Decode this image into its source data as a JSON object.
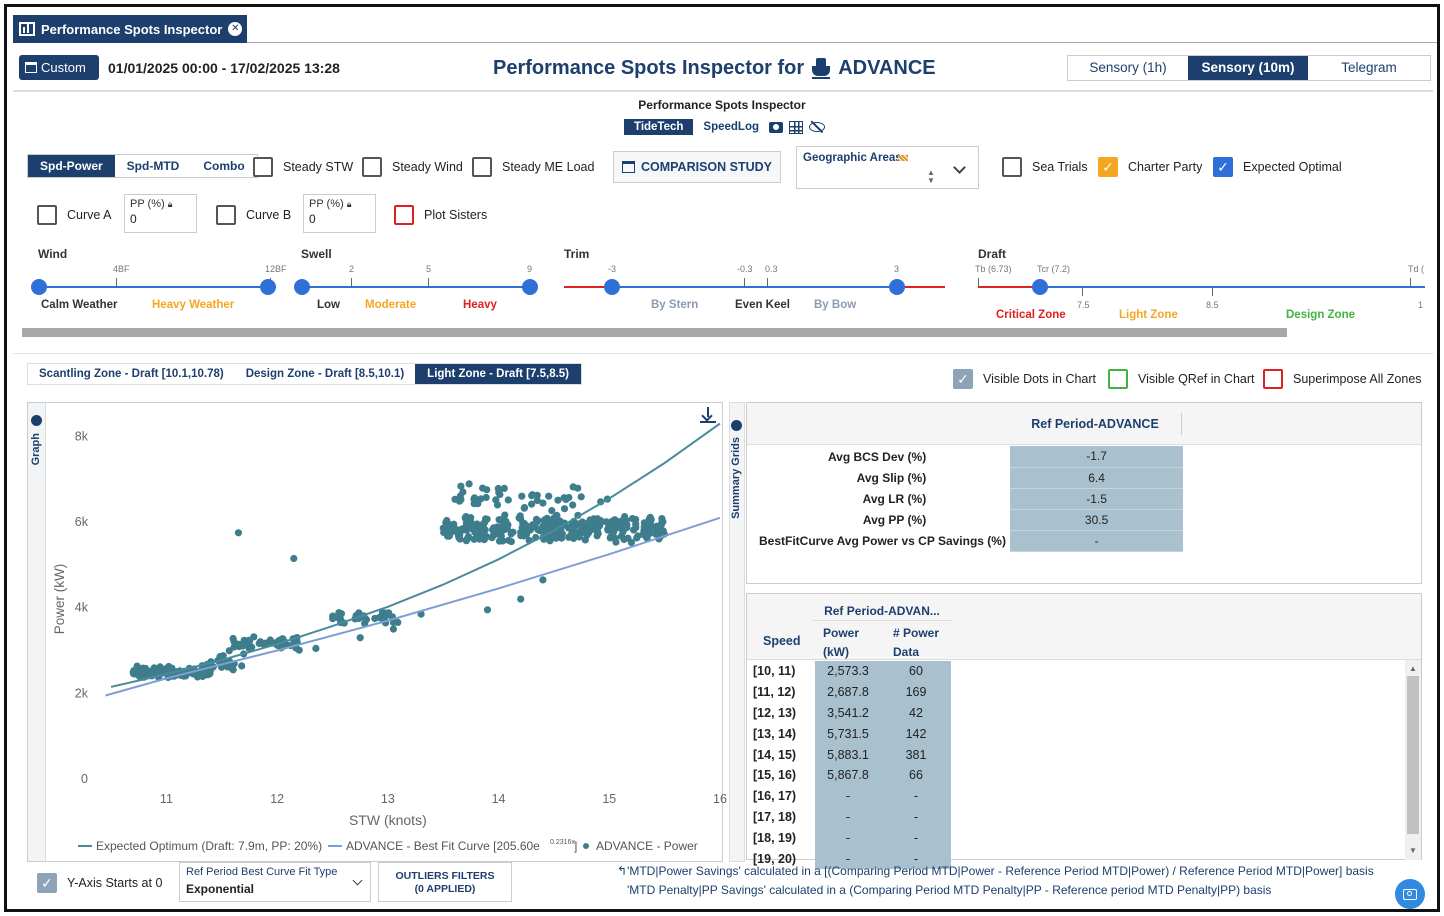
{
  "app_tab": {
    "title": "Performance Spots Inspector"
  },
  "header": {
    "custom_label": "Custom",
    "date_range": "01/01/2025 00:00 - 17/02/2025 13:28",
    "title_prefix": "Performance Spots Inspector for",
    "vessel": "ADVANCE",
    "source_tabs": [
      {
        "label": "Sensory (1h)",
        "active": false
      },
      {
        "label": "Sensory (10m)",
        "active": true
      },
      {
        "label": "Telegram",
        "active": false
      }
    ]
  },
  "subheader": {
    "title": "Performance Spots Inspector",
    "tabs": [
      {
        "label": "TideTech",
        "active": true
      },
      {
        "label": "SpeedLog",
        "active": false
      }
    ]
  },
  "modes": [
    {
      "label": "Spd-Power",
      "active": true
    },
    {
      "label": "Spd-MTD",
      "active": false
    },
    {
      "label": "Combo",
      "active": false
    }
  ],
  "filters": {
    "steady_stw": "Steady STW",
    "steady_wind": "Steady Wind",
    "steady_me": "Steady ME Load",
    "comparison": "COMPARISON STUDY",
    "geo": "Geographic Areas",
    "sea_trials": "Sea Trials",
    "charter_party": "Charter Party",
    "expected_optimal": "Expected Optimal"
  },
  "curves": {
    "curve_a": "Curve A",
    "curve_b": "Curve B",
    "pp_label": "PP (%)",
    "pp_a": "0",
    "pp_b": "0",
    "plot_sisters": "Plot Sisters"
  },
  "sliders": {
    "wind": {
      "title": "Wind",
      "t1": "4BF",
      "t2": "12BF",
      "z1": "Calm Weather",
      "z2": "Heavy Weather"
    },
    "swell": {
      "title": "Swell",
      "t1": "2",
      "t2": "5",
      "t3": "9",
      "z1": "Low",
      "z2": "Moderate",
      "z3": "Heavy"
    },
    "trim": {
      "title": "Trim",
      "t1": "-3",
      "t2": "-0.3",
      "t3": "0.3",
      "t4": "3",
      "z1": "By Stern",
      "z2": "Even Keel",
      "z3": "By Bow"
    },
    "draft": {
      "title": "Draft",
      "t1": "Tb (6.73)",
      "t2": "Tcr (7.2)",
      "t3": "7.5",
      "t4": "8.5",
      "t5": "Td (",
      "t6": "1",
      "z1": "Critical Zone",
      "z2": "Light Zone",
      "z3": "Design Zone"
    }
  },
  "zone_tabs": [
    {
      "label": "Scantling Zone - Draft [10.1,10.78)",
      "active": false
    },
    {
      "label": "Design Zone - Draft [8.5,10.1)",
      "active": false
    },
    {
      "label": "Light Zone - Draft [7.5,8.5)",
      "active": true
    }
  ],
  "visibility": {
    "dots": "Visible Dots in Chart",
    "qref": "Visible QRef in Chart",
    "superimpose": "Superimpose All Zones"
  },
  "graph": {
    "side_label": "Graph"
  },
  "chart_data": {
    "type": "scatter",
    "xlabel": "STW (knots)",
    "ylabel": "Power (kW)",
    "xlim": [
      10.4,
      16
    ],
    "ylim": [
      0,
      8500
    ],
    "xticks": [
      11,
      12,
      13,
      14,
      15,
      16
    ],
    "yticks": [
      0,
      2000,
      4000,
      6000,
      8000
    ],
    "ytick_labels": [
      "0",
      "2k",
      "4k",
      "6k",
      "8k"
    ],
    "legend": [
      "Expected Optimum (Draft: 7.9m, PP: 20%)",
      "ADVANCE - Best Fit Curve [205.60e",
      "0.2316x",
      "ADVANCE - Power"
    ],
    "series": [
      {
        "name": "Expected Optimum (Draft: 7.9m, PP: 20%)",
        "kind": "line",
        "color": "#4a8c9c",
        "x": [
          10.5,
          11,
          11.5,
          12,
          12.5,
          13,
          13.5,
          14,
          14.5,
          15,
          15.5,
          16
        ],
        "y": [
          2150,
          2450,
          2780,
          3150,
          3570,
          4020,
          4540,
          5130,
          5800,
          6550,
          7380,
          8300
        ]
      },
      {
        "name": "ADVANCE - Best Fit Curve",
        "kind": "line",
        "color": "#7e9ed6",
        "x": [
          10.45,
          11,
          12,
          13,
          14,
          15,
          16
        ],
        "y": [
          1950,
          2350,
          3000,
          3700,
          4450,
          5250,
          6100
        ]
      },
      {
        "name": "ADVANCE - Power",
        "kind": "scatter",
        "color": "#3d7d8c",
        "clusters": [
          {
            "x": [
              10.7,
              11.4
            ],
            "y": [
              2350,
              2650
            ],
            "n": 110
          },
          {
            "x": [
              11.3,
              11.7
            ],
            "y": [
              2400,
              3050
            ],
            "n": 25
          },
          {
            "x": [
              11.6,
              12.2
            ],
            "y": [
              3000,
              3350
            ],
            "n": 45
          },
          {
            "x": [
              12.5,
              13.1
            ],
            "y": [
              3600,
              3950
            ],
            "n": 30
          },
          {
            "x": [
              13.5,
              15.5
            ],
            "y": [
              5500,
              6200
            ],
            "n": 330
          },
          {
            "x": [
              13.6,
              15.0
            ],
            "y": [
              6250,
              6950
            ],
            "n": 45
          }
        ],
        "outliers": [
          [
            11.65,
            5750
          ],
          [
            12.15,
            5150
          ],
          [
            12.35,
            3050
          ],
          [
            12.75,
            3300
          ],
          [
            13.3,
            3850
          ],
          [
            13.9,
            3950
          ],
          [
            14.2,
            4200
          ],
          [
            14.4,
            4650
          ],
          [
            12.0,
            3200
          ],
          [
            13.05,
            3500
          ]
        ]
      }
    ]
  },
  "summary": {
    "side_label": "Summary Grids",
    "ref_header": "Ref Period-ADVANCE",
    "rows": [
      {
        "label": "Avg BCS Dev (%)",
        "value": "-1.7"
      },
      {
        "label": "Avg Slip (%)",
        "value": "6.4"
      },
      {
        "label": "Avg LR (%)",
        "value": "-1.5"
      },
      {
        "label": "Avg PP (%)",
        "value": "30.5"
      },
      {
        "label": "BestFitCurve Avg Power vs CP Savings (%)",
        "value": "-"
      }
    ],
    "speed_table": {
      "group_header": "Ref Period-ADVAN...",
      "col_speed": "Speed",
      "col_power": "Power (kW)",
      "col_count": "# Power Data",
      "rows": [
        {
          "speed": "[10, 11)",
          "power": "2,573.3",
          "count": "60"
        },
        {
          "speed": "[11, 12)",
          "power": "2,687.8",
          "count": "169"
        },
        {
          "speed": "[12, 13)",
          "power": "3,541.2",
          "count": "42"
        },
        {
          "speed": "[13, 14)",
          "power": "5,731.5",
          "count": "142"
        },
        {
          "speed": "[14, 15)",
          "power": "5,883.1",
          "count": "381"
        },
        {
          "speed": "[15, 16)",
          "power": "5,867.8",
          "count": "66"
        },
        {
          "speed": "[16, 17)",
          "power": "-",
          "count": "-"
        },
        {
          "speed": "[17, 18)",
          "power": "-",
          "count": "-"
        },
        {
          "speed": "[18, 19)",
          "power": "-",
          "count": "-"
        },
        {
          "speed": "[19, 20)",
          "power": "-",
          "count": "-"
        }
      ]
    }
  },
  "footer": {
    "y_axis_zero": "Y-Axis Starts at 0",
    "fit_type_label": "Ref Period Best Curve Fit Type",
    "fit_type_value": "Exponential",
    "outliers_line1": "OUTLIERS FILTERS",
    "outliers_line2": "(0 APPLIED)",
    "note1": "'MTD|Power Savings' calculated in a [(Comparing Period MTD|Power - Reference Period MTD|Power) / Reference Period MTD|Power] basis",
    "note2": "'MTD Penalty|PP Savings' calculated in a (Comparing Period MTD Penalty|PP - Reference period MTD Penalty|PP) basis"
  }
}
